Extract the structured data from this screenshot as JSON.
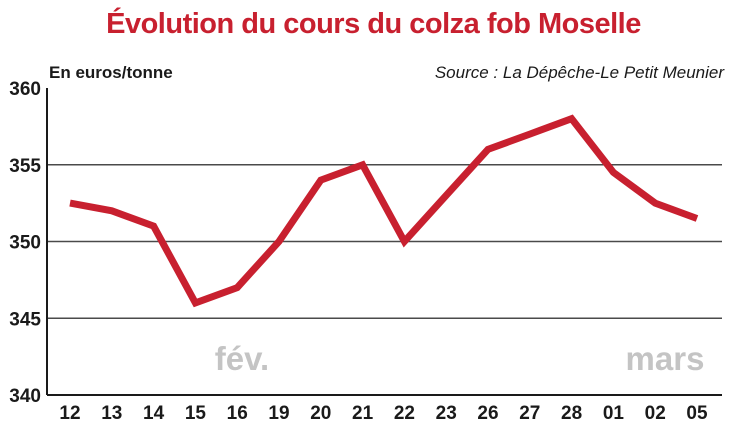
{
  "title": "Évolution du cours du colza fob Moselle",
  "unit_label": "En euros/tonne",
  "source": "Source : La Dépêche-Le Petit Meunier",
  "colors": {
    "line": "#c8202f",
    "title": "#c8202f",
    "grid": "#4a4a4a",
    "month_label": "#c4c4c4"
  },
  "chart_data": {
    "type": "line",
    "title": "Évolution du cours du colza fob Moselle",
    "ylabel": "En euros/tonne",
    "xlabel": "",
    "categories": [
      "12",
      "13",
      "14",
      "15",
      "16",
      "19",
      "20",
      "21",
      "22",
      "23",
      "26",
      "27",
      "28",
      "01",
      "02",
      "05"
    ],
    "series": [
      {
        "values": [
          352.5,
          352,
          351,
          346,
          347,
          350,
          354,
          355,
          350,
          353,
          356,
          357,
          358,
          354.5,
          352.5,
          351.5
        ]
      }
    ],
    "ylim": [
      340,
      360
    ],
    "yticks": [
      340,
      345,
      350,
      355,
      360
    ],
    "grid": true,
    "legend": "none",
    "annotations": [
      "fév.",
      "mars"
    ]
  }
}
